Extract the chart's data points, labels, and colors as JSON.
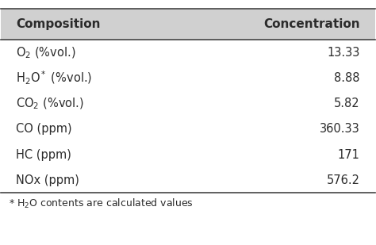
{
  "header": [
    "Composition",
    "Concentration"
  ],
  "rows": [
    [
      "O$_2$ (%vol.)",
      "13.33"
    ],
    [
      "H$_2$O$^*$ (%vol.)",
      "8.88"
    ],
    [
      "CO$_2$ (%vol.)",
      "5.82"
    ],
    [
      "CO (ppm)",
      "360.33"
    ],
    [
      "HC (ppm)",
      "171"
    ],
    [
      "NOx (ppm)",
      "576.2"
    ]
  ],
  "footnote": "* H$_2$O contents are calculated values",
  "header_bg": "#d0d0d0",
  "row_bg": "#ffffff",
  "text_color": "#2b2b2b",
  "header_fontsize": 11,
  "row_fontsize": 10.5,
  "footnote_fontsize": 9
}
